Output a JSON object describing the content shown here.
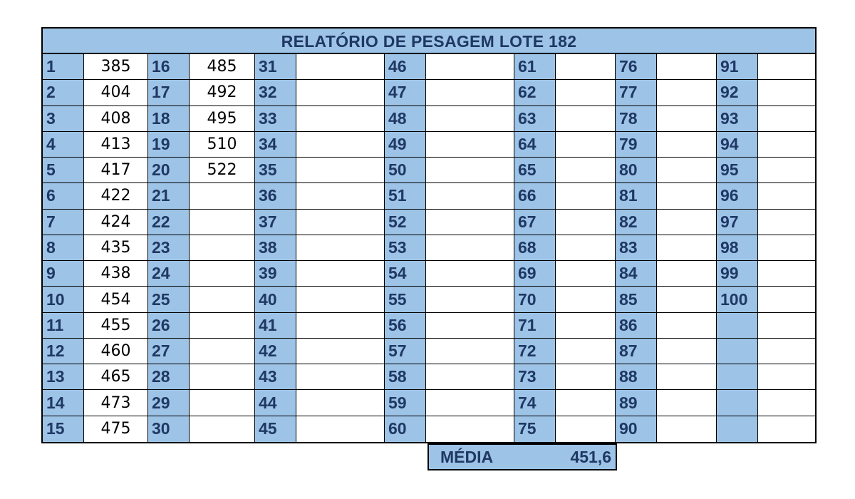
{
  "report": {
    "title": "RELATÓRIO DE PESAGEM LOTE 182",
    "weights": [
      385,
      404,
      408,
      413,
      417,
      422,
      424,
      435,
      438,
      454,
      455,
      460,
      465,
      473,
      475,
      485,
      492,
      495,
      510,
      522
    ],
    "numbers": [
      "1",
      "2",
      "3",
      "4",
      "5",
      "6",
      "7",
      "8",
      "9",
      "10",
      "11",
      "12",
      "13",
      "14",
      "15",
      "16",
      "17",
      "18",
      "19",
      "20",
      "21",
      "22",
      "23",
      "24",
      "25",
      "26",
      "27",
      "28",
      "29",
      "30",
      "31",
      "32",
      "33",
      "34",
      "35",
      "36",
      "37",
      "38",
      "39",
      "40",
      "41",
      "42",
      "43",
      "44",
      "45",
      "46",
      "47",
      "48",
      "49",
      "50",
      "51",
      "52",
      "53",
      "54",
      "55",
      "56",
      "57",
      "58",
      "59",
      "60",
      "61",
      "62",
      "63",
      "64",
      "65",
      "66",
      "67",
      "68",
      "69",
      "70",
      "71",
      "72",
      "73",
      "74",
      "75",
      "76",
      "77",
      "78",
      "79",
      "80",
      "81",
      "82",
      "83",
      "84",
      "85",
      "86",
      "87",
      "88",
      "89",
      "90",
      "91",
      "92",
      "93",
      "94",
      "95",
      "96",
      "97",
      "98",
      "99",
      "100",
      "",
      "",
      "",
      "",
      ""
    ],
    "average_label": "MÉDIA",
    "average_value": "451,6"
  },
  "colors": {
    "header_fill": "#9dc3e6",
    "header_text": "#1f3864",
    "grid_line": "#000000"
  }
}
